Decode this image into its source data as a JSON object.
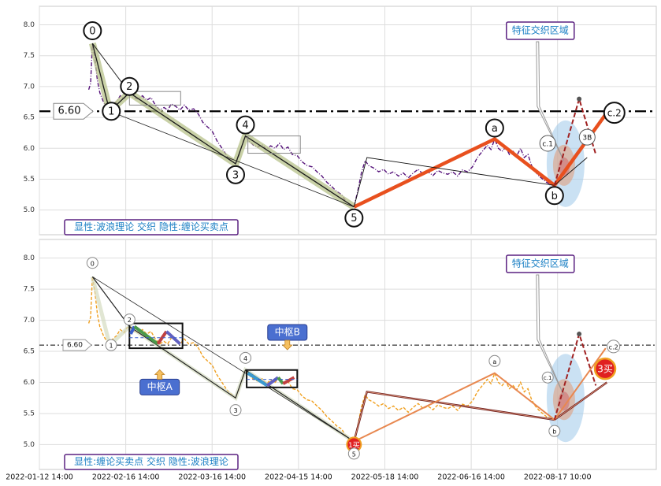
{
  "chart_data": [
    {
      "type": "line",
      "panel": "top",
      "ylim": [
        4.6,
        8.3
      ],
      "yticks": [
        5.0,
        5.5,
        6.0,
        6.5,
        7.0,
        7.5,
        8.0
      ],
      "ref_line": {
        "value": 6.6,
        "label": "6.60"
      },
      "caption": "显性:波浪理论 交织 隐性:缠论买卖点",
      "zone_label": "特征交织区域",
      "price_color": "#55127a",
      "wave_points": [
        {
          "x": 8.6,
          "y": 7.7,
          "label": "0"
        },
        {
          "x": 11.4,
          "y": 6.6,
          "label": "1"
        },
        {
          "x": 14.6,
          "y": 6.9,
          "label": "2"
        },
        {
          "x": 31.8,
          "y": 5.75,
          "label": "3"
        },
        {
          "x": 33.4,
          "y": 6.2,
          "label": "4"
        },
        {
          "x": 51.0,
          "y": 5.05,
          "label": "5"
        },
        {
          "x": 73.8,
          "y": 6.15,
          "label": "a"
        },
        {
          "x": 83.5,
          "y": 5.4,
          "label": "b"
        },
        {
          "x": 91.8,
          "y": 6.55,
          "label": "c.2"
        }
      ],
      "extra_labels": [
        {
          "x": 82.4,
          "y": 6.08,
          "label": "c.1"
        },
        {
          "x": 88.8,
          "y": 6.18,
          "label": "3B"
        }
      ]
    },
    {
      "type": "line",
      "panel": "bottom",
      "ylim": [
        4.6,
        8.3
      ],
      "yticks": [
        5.0,
        5.5,
        6.0,
        6.5,
        7.0,
        7.5,
        8.0
      ],
      "ref_line": {
        "value": 6.6,
        "label": "6.60"
      },
      "caption": "显性:缠论买卖点 交织 隐性:波浪理论",
      "zone_label": "特征交织区域",
      "price_color": "#f0a020",
      "hub_labels": [
        "中枢A",
        "中枢B"
      ],
      "buy_labels": [
        "1买",
        "3买"
      ],
      "wave_points": [
        {
          "x": 8.6,
          "y": 7.7,
          "label": "0"
        },
        {
          "x": 11.4,
          "y": 6.6,
          "label": "1"
        },
        {
          "x": 14.6,
          "y": 6.9,
          "label": "2"
        },
        {
          "x": 31.8,
          "y": 5.75,
          "label": "3"
        },
        {
          "x": 33.4,
          "y": 6.2,
          "label": "4"
        },
        {
          "x": 51.0,
          "y": 5.05,
          "label": "5"
        },
        {
          "x": 73.8,
          "y": 6.15,
          "label": "a"
        },
        {
          "x": 83.5,
          "y": 5.4,
          "label": "b"
        },
        {
          "x": 91.8,
          "y": 6.55,
          "label": "c.2"
        }
      ],
      "extra_labels": [
        {
          "x": 82.4,
          "y": 6.08,
          "label": "c.1"
        }
      ]
    }
  ],
  "x_axis": {
    "range": [
      0,
      100
    ],
    "ticks": [
      {
        "x": 0,
        "label": "2022-01-12 14:00"
      },
      {
        "x": 14,
        "label": "2022-02-16 14:00"
      },
      {
        "x": 28,
        "label": "2022-03-16 14:00"
      },
      {
        "x": 42,
        "label": "2022-04-15 14:00"
      },
      {
        "x": 56,
        "label": "2022-05-18 14:00"
      },
      {
        "x": 70,
        "label": "2022-06-16 14:00"
      },
      {
        "x": 84,
        "label": "2022-08-17 10:00"
      }
    ]
  },
  "price_path": [
    [
      8.0,
      6.95
    ],
    [
      8.3,
      7.05
    ],
    [
      8.6,
      7.7
    ],
    [
      9.0,
      7.45
    ],
    [
      9.4,
      7.1
    ],
    [
      9.8,
      6.9
    ],
    [
      10.4,
      6.75
    ],
    [
      11.0,
      6.65
    ],
    [
      11.4,
      6.6
    ],
    [
      11.9,
      6.7
    ],
    [
      12.5,
      6.75
    ],
    [
      13.1,
      6.85
    ],
    [
      13.7,
      6.8
    ],
    [
      14.2,
      6.88
    ],
    [
      14.6,
      6.9
    ],
    [
      15.3,
      6.82
    ],
    [
      16.0,
      6.8
    ],
    [
      16.7,
      6.85
    ],
    [
      17.4,
      6.78
    ],
    [
      18.1,
      6.82
    ],
    [
      18.8,
      6.7
    ],
    [
      19.5,
      6.62
    ],
    [
      20.2,
      6.66
    ],
    [
      20.8,
      6.62
    ],
    [
      21.4,
      6.72
    ],
    [
      22.1,
      6.68
    ],
    [
      22.8,
      6.62
    ],
    [
      23.5,
      6.7
    ],
    [
      24.2,
      6.62
    ],
    [
      25.0,
      6.64
    ],
    [
      25.8,
      6.55
    ],
    [
      26.5,
      6.42
    ],
    [
      27.2,
      6.35
    ],
    [
      28.0,
      6.28
    ],
    [
      28.8,
      6.12
    ],
    [
      29.6,
      6.0
    ],
    [
      30.4,
      5.88
    ],
    [
      31.0,
      5.82
    ],
    [
      31.8,
      5.75
    ],
    [
      32.4,
      5.9
    ],
    [
      33.0,
      6.1
    ],
    [
      33.4,
      6.2
    ],
    [
      34.0,
      6.12
    ],
    [
      34.7,
      6.05
    ],
    [
      35.4,
      6.02
    ],
    [
      36.1,
      6.06
    ],
    [
      36.8,
      5.98
    ],
    [
      37.5,
      6.04
    ],
    [
      38.2,
      6.0
    ],
    [
      38.9,
      6.08
    ],
    [
      39.6,
      5.98
    ],
    [
      40.3,
      6.02
    ],
    [
      41.0,
      5.9
    ],
    [
      41.8,
      5.88
    ],
    [
      42.6,
      5.78
    ],
    [
      43.4,
      5.72
    ],
    [
      44.2,
      5.7
    ],
    [
      45.0,
      5.62
    ],
    [
      45.8,
      5.55
    ],
    [
      46.6,
      5.45
    ],
    [
      47.4,
      5.38
    ],
    [
      48.2,
      5.3
    ],
    [
      49.0,
      5.25
    ],
    [
      49.8,
      5.12
    ],
    [
      50.4,
      5.08
    ],
    [
      51.0,
      5.05
    ],
    [
      51.6,
      5.3
    ],
    [
      52.2,
      5.6
    ],
    [
      52.8,
      5.8
    ],
    [
      53.4,
      5.72
    ],
    [
      54.2,
      5.68
    ],
    [
      55.0,
      5.62
    ],
    [
      55.8,
      5.66
    ],
    [
      56.6,
      5.58
    ],
    [
      57.4,
      5.62
    ],
    [
      58.2,
      5.55
    ],
    [
      59.0,
      5.6
    ],
    [
      59.8,
      5.52
    ],
    [
      60.6,
      5.6
    ],
    [
      61.4,
      5.66
    ],
    [
      62.2,
      5.58
    ],
    [
      63.0,
      5.62
    ],
    [
      63.8,
      5.56
    ],
    [
      64.6,
      5.64
    ],
    [
      65.4,
      5.6
    ],
    [
      66.2,
      5.58
    ],
    [
      67.0,
      5.62
    ],
    [
      67.8,
      5.55
    ],
    [
      68.6,
      5.65
    ],
    [
      69.4,
      5.62
    ],
    [
      70.2,
      5.7
    ],
    [
      71.0,
      5.85
    ],
    [
      71.8,
      5.95
    ],
    [
      72.6,
      6.05
    ],
    [
      73.2,
      5.98
    ],
    [
      73.8,
      6.15
    ],
    [
      74.4,
      6.0
    ],
    [
      75.0,
      5.95
    ],
    [
      75.6,
      6.02
    ],
    [
      76.2,
      5.9
    ],
    [
      76.8,
      5.95
    ],
    [
      77.4,
      5.88
    ],
    [
      78.0,
      6.0
    ],
    [
      78.6,
      5.85
    ],
    [
      79.2,
      5.9
    ],
    [
      79.8,
      5.72
    ],
    [
      80.4,
      5.62
    ],
    [
      81.0,
      5.55
    ],
    [
      81.6,
      5.5
    ],
    [
      82.2,
      5.45
    ],
    [
      82.8,
      5.42
    ],
    [
      83.5,
      5.4
    ]
  ]
}
